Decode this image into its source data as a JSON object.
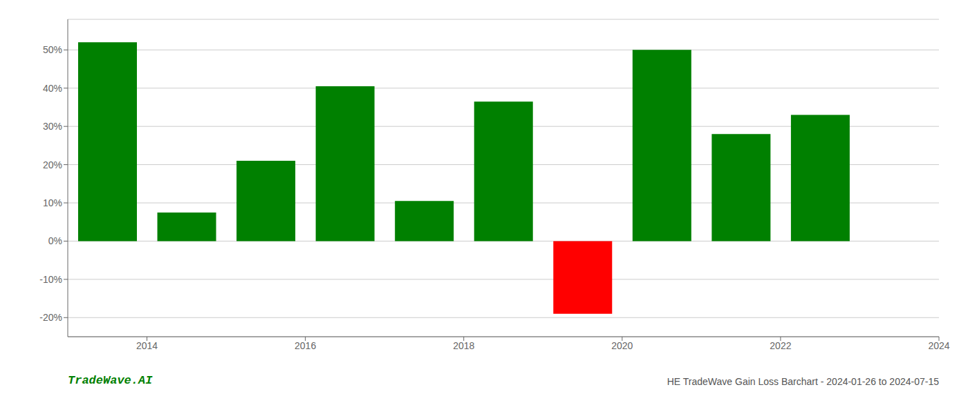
{
  "chart_data": {
    "type": "bar",
    "x": [
      2013.5,
      2014.5,
      2015.5,
      2016.5,
      2017.5,
      2018.5,
      2019.5,
      2020.5,
      2021.5,
      2022.5
    ],
    "values": [
      52.0,
      7.5,
      21.0,
      40.5,
      10.5,
      36.5,
      -19.0,
      50.0,
      28.0,
      33.0
    ],
    "colors": [
      "#008000",
      "#008000",
      "#008000",
      "#008000",
      "#008000",
      "#008000",
      "#ff0000",
      "#008000",
      "#008000",
      "#008000"
    ],
    "xlim": [
      2013.0,
      2024.0
    ],
    "xticks": [
      2014,
      2016,
      2018,
      2020,
      2022,
      2024
    ],
    "ylim": [
      -25,
      58
    ],
    "yticks": [
      {
        "value": -20,
        "label": "-20%"
      },
      {
        "value": -10,
        "label": "-10%"
      },
      {
        "value": 0,
        "label": "0%"
      },
      {
        "value": 10,
        "label": "10%"
      },
      {
        "value": 20,
        "label": "20%"
      },
      {
        "value": 30,
        "label": "30%"
      },
      {
        "value": 40,
        "label": "40%"
      },
      {
        "value": 50,
        "label": "50%"
      }
    ],
    "grid": true,
    "annotations": [
      {
        "text": "TradeWave.AI",
        "color": "#008000"
      },
      {
        "text": "HE TradeWave Gain Loss Barchart - 2024-01-26 to 2024-07-15",
        "color": "#555555"
      }
    ]
  }
}
